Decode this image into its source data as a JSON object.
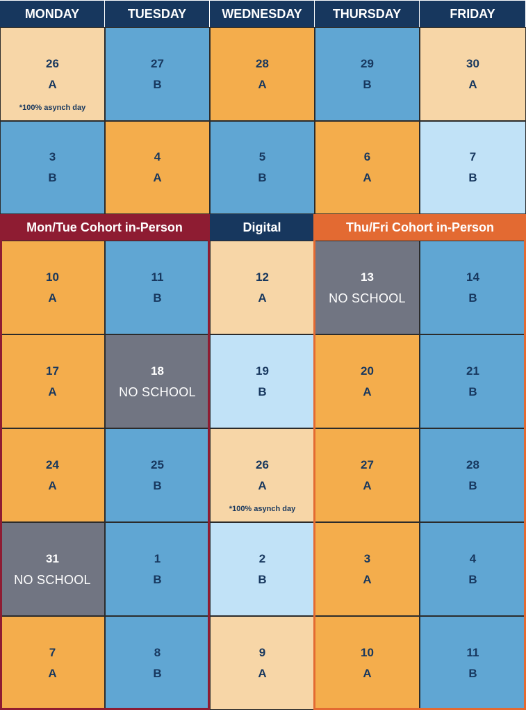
{
  "colors": {
    "header": "#17375e",
    "orange": "#f4ad4c",
    "peach": "#f7d6a7",
    "blue": "#60a6d3",
    "light_blue": "#c1e2f7",
    "gray": "#717582",
    "mon_tue_band": "#8e1c32",
    "thu_fri_band": "#e36a32"
  },
  "headers": [
    "MONDAY",
    "TUESDAY",
    "WEDNESDAY",
    "THURSDAY",
    "FRIDAY"
  ],
  "cohorts": {
    "mon_tue": "Mon/Tue Cohort in-Person",
    "digital": "Digital",
    "thu_fri": "Thu/Fri Cohort in-Person"
  },
  "weeks": [
    [
      {
        "day": "26",
        "letter": "A",
        "note": "*100% asynch day",
        "color": "peach"
      },
      {
        "day": "27",
        "letter": "B",
        "color": "blue"
      },
      {
        "day": "28",
        "letter": "A",
        "color": "orange"
      },
      {
        "day": "29",
        "letter": "B",
        "color": "blue"
      },
      {
        "day": "30",
        "letter": "A",
        "color": "peach"
      }
    ],
    [
      {
        "day": "3",
        "letter": "B",
        "color": "blue"
      },
      {
        "day": "4",
        "letter": "A",
        "color": "orange"
      },
      {
        "day": "5",
        "letter": "B",
        "color": "blue"
      },
      {
        "day": "6",
        "letter": "A",
        "color": "orange"
      },
      {
        "day": "7",
        "letter": "B",
        "color": "light_blue"
      }
    ],
    [
      {
        "day": "10",
        "letter": "A",
        "color": "orange"
      },
      {
        "day": "11",
        "letter": "B",
        "color": "blue"
      },
      {
        "day": "12",
        "letter": "A",
        "color": "peach"
      },
      {
        "day": "13",
        "letter": "NO SCHOOL",
        "color": "gray"
      },
      {
        "day": "14",
        "letter": "B",
        "color": "blue"
      }
    ],
    [
      {
        "day": "17",
        "letter": "A",
        "color": "orange"
      },
      {
        "day": "18",
        "letter": "NO SCHOOL",
        "color": "gray"
      },
      {
        "day": "19",
        "letter": "B",
        "color": "light_blue"
      },
      {
        "day": "20",
        "letter": "A",
        "color": "orange"
      },
      {
        "day": "21",
        "letter": "B",
        "color": "blue"
      }
    ],
    [
      {
        "day": "24",
        "letter": "A",
        "color": "orange"
      },
      {
        "day": "25",
        "letter": "B",
        "color": "blue"
      },
      {
        "day": "26",
        "letter": "A",
        "note": "*100% asynch day",
        "color": "peach"
      },
      {
        "day": "27",
        "letter": "A",
        "color": "orange"
      },
      {
        "day": "28",
        "letter": "B",
        "color": "blue"
      }
    ],
    [
      {
        "day": "31",
        "letter": "NO SCHOOL",
        "color": "gray"
      },
      {
        "day": "1",
        "letter": "B",
        "color": "blue"
      },
      {
        "day": "2",
        "letter": "B",
        "color": "light_blue"
      },
      {
        "day": "3",
        "letter": "A",
        "color": "orange"
      },
      {
        "day": "4",
        "letter": "B",
        "color": "blue"
      }
    ],
    [
      {
        "day": "7",
        "letter": "A",
        "color": "orange"
      },
      {
        "day": "8",
        "letter": "B",
        "color": "blue"
      },
      {
        "day": "9",
        "letter": "A",
        "color": "peach"
      },
      {
        "day": "10",
        "letter": "A",
        "color": "orange"
      },
      {
        "day": "11",
        "letter": "B",
        "color": "blue"
      }
    ]
  ]
}
